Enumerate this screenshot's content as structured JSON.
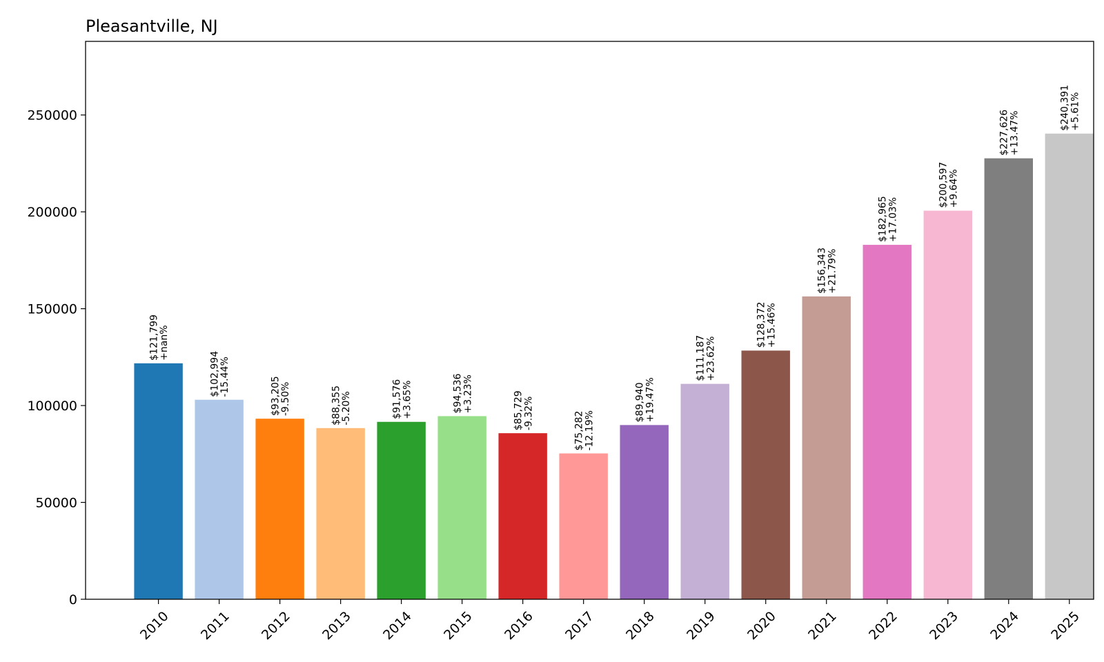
{
  "chart_data": {
    "type": "bar",
    "title": "Pleasantville, NJ",
    "xlabel": "",
    "ylabel": "",
    "categories": [
      "2010",
      "2011",
      "2012",
      "2013",
      "2014",
      "2015",
      "2016",
      "2017",
      "2018",
      "2019",
      "2020",
      "2021",
      "2022",
      "2023",
      "2024",
      "2025"
    ],
    "values": [
      121799,
      102994,
      93205,
      88355,
      91576,
      94536,
      85729,
      75282,
      89940,
      111187,
      128372,
      156343,
      182965,
      200597,
      227626,
      240391
    ],
    "value_labels": [
      "$121,799",
      "$102,994",
      "$93,205",
      "$88,355",
      "$91,576",
      "$94,536",
      "$85,729",
      "$75,282",
      "$89,940",
      "$111,187",
      "$128,372",
      "$156,343",
      "$182,965",
      "$200,597",
      "$227,626",
      "$240,391"
    ],
    "change_labels": [
      "+nan%",
      "-15.44%",
      "-9.50%",
      "-5.20%",
      "+3.65%",
      "+3.23%",
      "-9.32%",
      "-12.19%",
      "+19.47%",
      "+23.62%",
      "+15.46%",
      "+21.79%",
      "+17.03%",
      "+9.64%",
      "+13.47%",
      "+5.61%"
    ],
    "colors": [
      "#1f77b4",
      "#aec7e8",
      "#ff7f0e",
      "#ffbb78",
      "#2ca02c",
      "#98df8a",
      "#d62728",
      "#ff9896",
      "#9467bd",
      "#c5b0d5",
      "#8c564b",
      "#c49c94",
      "#e377c2",
      "#f7b6d2",
      "#7f7f7f",
      "#c7c7c7"
    ],
    "ylim": [
      0,
      288000
    ],
    "yticks": [
      0,
      50000,
      100000,
      150000,
      200000,
      250000
    ],
    "ytick_labels": [
      "0",
      "50000",
      "100000",
      "150000",
      "200000",
      "250000"
    ],
    "grid": false,
    "legend": "none"
  }
}
